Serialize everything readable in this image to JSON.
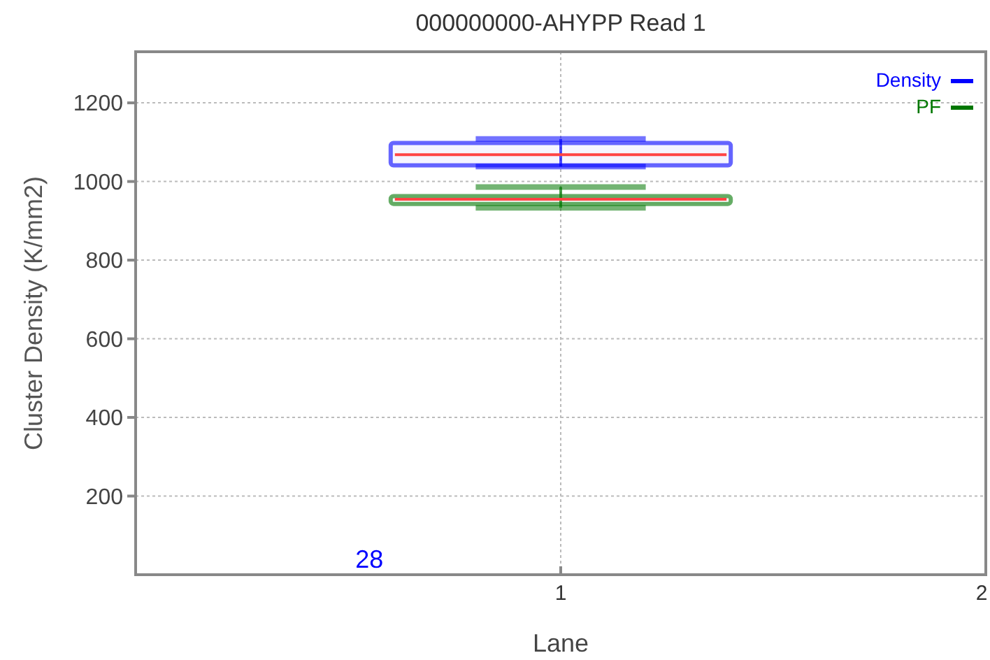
{
  "chart_data": {
    "type": "box",
    "title": "000000000-AHYPP Read 1",
    "xlabel": "Lane",
    "ylabel": "Cluster Density (K/mm2)",
    "categories": [
      null,
      "1",
      "2"
    ],
    "ylim": [
      0,
      1330
    ],
    "yticks": [
      200,
      400,
      600,
      800,
      1000,
      1200
    ],
    "grid": true,
    "legend": "top right",
    "annotations": [
      "28"
    ],
    "series": [
      {
        "name": "Density",
        "color": "#0000ff",
        "boxes": [
          null,
          {
            "low": 1038,
            "q1": 1041,
            "median": 1068,
            "q3": 1098,
            "high": 1108
          },
          null
        ]
      },
      {
        "name": "PF",
        "color": "#007700",
        "boxes": [
          null,
          {
            "low": 933,
            "q1": 943,
            "median": 955,
            "q3": 963,
            "high": 986
          },
          null
        ]
      }
    ]
  }
}
